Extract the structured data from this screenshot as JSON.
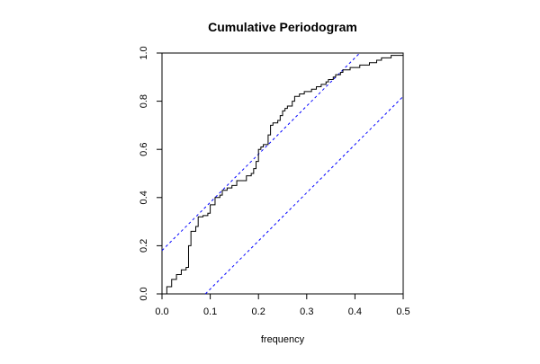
{
  "chart_data": {
    "type": "line",
    "title": "Cumulative Periodogram",
    "xlabel": "frequency",
    "ylabel": "",
    "xlim": [
      0.0,
      0.5
    ],
    "ylim": [
      0.0,
      1.0
    ],
    "xticks": [
      "0.0",
      "0.1",
      "0.2",
      "0.3",
      "0.4",
      "0.5"
    ],
    "yticks": [
      "0.0",
      "0.2",
      "0.4",
      "0.6",
      "0.8",
      "1.0"
    ],
    "grid": false,
    "legend": "none",
    "colors": {
      "series": "#000000",
      "bounds": "#0000ff"
    },
    "series": [
      {
        "style": "step",
        "x": [
          0.0,
          0.01,
          0.02,
          0.03,
          0.04,
          0.05,
          0.055,
          0.06,
          0.07,
          0.075,
          0.085,
          0.095,
          0.1,
          0.11,
          0.12,
          0.125,
          0.135,
          0.145,
          0.155,
          0.165,
          0.175,
          0.185,
          0.19,
          0.195,
          0.2,
          0.205,
          0.21,
          0.215,
          0.22,
          0.225,
          0.23,
          0.24,
          0.245,
          0.25,
          0.255,
          0.26,
          0.27,
          0.275,
          0.285,
          0.29,
          0.295,
          0.31,
          0.315,
          0.32,
          0.325,
          0.33,
          0.34,
          0.345,
          0.35,
          0.355,
          0.36,
          0.365,
          0.37,
          0.375,
          0.38,
          0.39,
          0.4,
          0.41,
          0.42,
          0.43,
          0.445,
          0.455,
          0.465,
          0.475,
          0.485,
          0.5
        ],
        "y": [
          0.0,
          0.03,
          0.06,
          0.08,
          0.1,
          0.11,
          0.2,
          0.26,
          0.28,
          0.32,
          0.325,
          0.335,
          0.37,
          0.4,
          0.41,
          0.43,
          0.44,
          0.45,
          0.47,
          0.47,
          0.49,
          0.5,
          0.52,
          0.55,
          0.6,
          0.61,
          0.62,
          0.62,
          0.66,
          0.7,
          0.71,
          0.72,
          0.74,
          0.76,
          0.77,
          0.78,
          0.8,
          0.82,
          0.83,
          0.83,
          0.84,
          0.85,
          0.85,
          0.86,
          0.86,
          0.87,
          0.88,
          0.89,
          0.89,
          0.9,
          0.91,
          0.91,
          0.92,
          0.93,
          0.93,
          0.94,
          0.94,
          0.95,
          0.95,
          0.96,
          0.97,
          0.98,
          0.98,
          0.99,
          0.99,
          1.0
        ]
      }
    ],
    "bounds": [
      {
        "style": "dashed",
        "x": [
          0.0,
          0.41
        ],
        "y": [
          0.18,
          1.0
        ]
      },
      {
        "style": "dashed",
        "x": [
          0.09,
          0.5
        ],
        "y": [
          0.0,
          0.82
        ]
      }
    ]
  }
}
